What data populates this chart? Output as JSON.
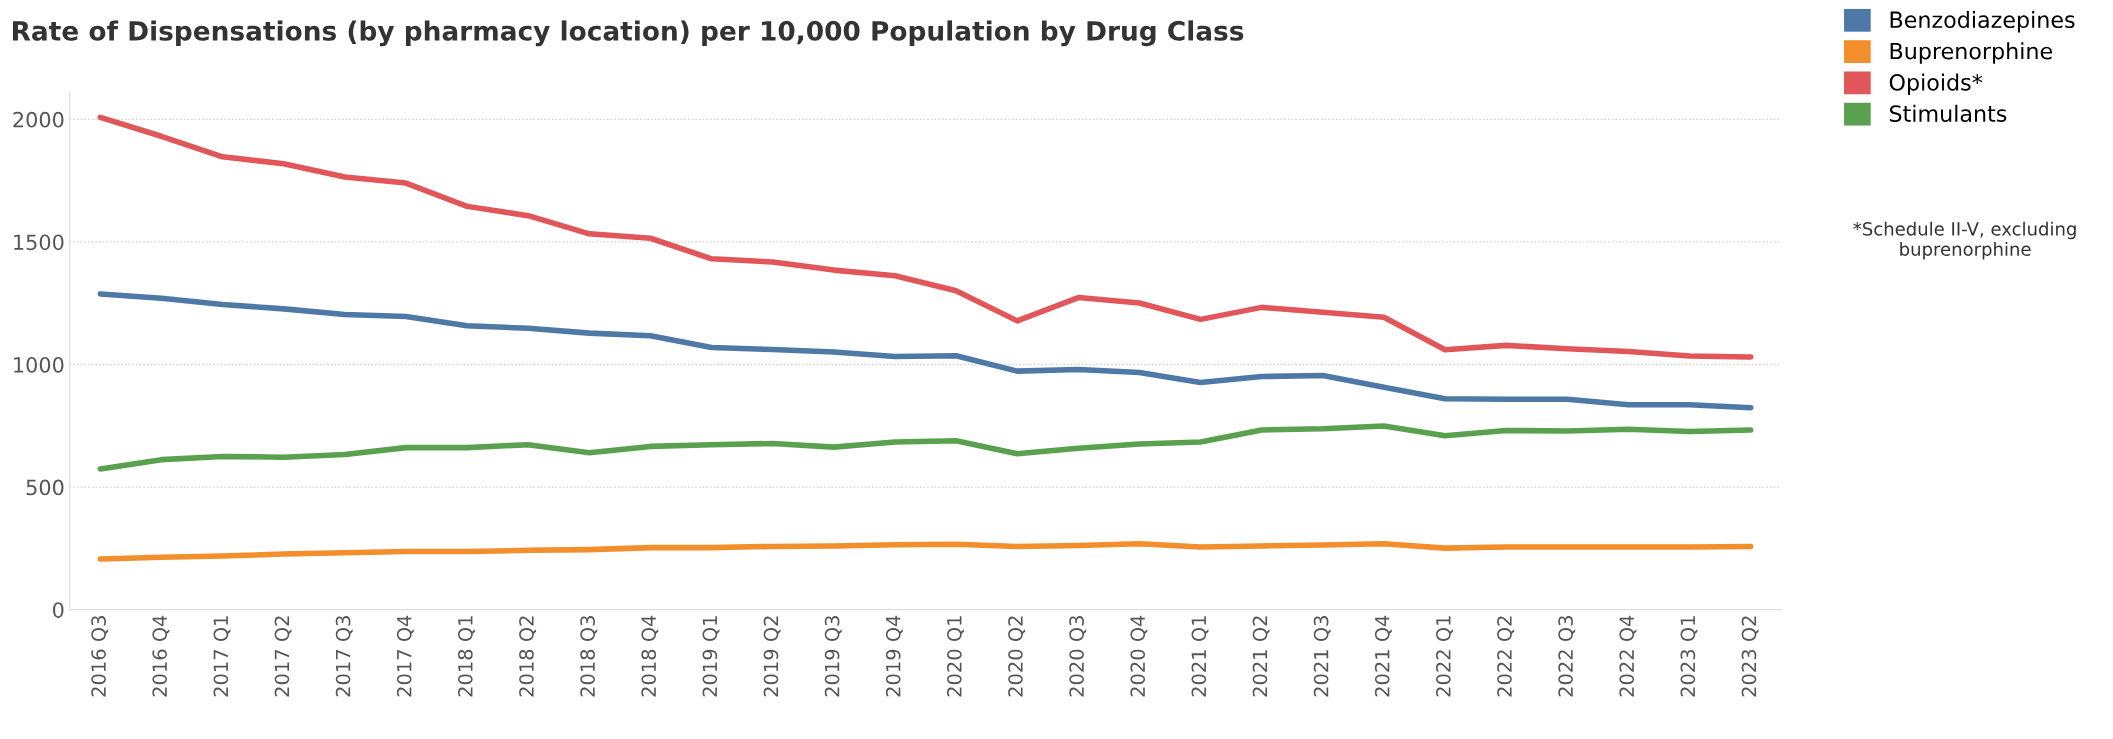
{
  "chart_data": {
    "type": "line",
    "title": "Rate of Dispensations (by pharmacy location) per 10,000 Population by Drug Class",
    "categories": [
      "2016 Q3",
      "2016 Q4",
      "2017 Q1",
      "2017 Q2",
      "2017 Q3",
      "2017 Q4",
      "2018 Q1",
      "2018 Q2",
      "2018 Q3",
      "2018 Q4",
      "2019 Q1",
      "2019 Q2",
      "2019 Q3",
      "2019 Q4",
      "2020 Q1",
      "2020 Q2",
      "2020 Q3",
      "2020 Q4",
      "2021 Q1",
      "2021 Q2",
      "2021 Q3",
      "2021 Q4",
      "2022 Q1",
      "2022 Q2",
      "2022 Q3",
      "2022 Q4",
      "2023 Q1",
      "2023 Q2"
    ],
    "series": [
      {
        "name": "Benzodiazepines",
        "color": "#4e79a7",
        "values": [
          1288,
          1270,
          1245,
          1227,
          1204,
          1196,
          1158,
          1148,
          1128,
          1117,
          1069,
          1061,
          1051,
          1033,
          1036,
          973,
          980,
          967,
          927,
          951,
          955,
          907,
          860,
          858,
          858,
          836,
          836,
          824
        ]
      },
      {
        "name": "Buprenorphine",
        "color": "#f28e2b",
        "values": [
          207,
          214,
          219,
          227,
          232,
          237,
          237,
          242,
          245,
          253,
          253,
          258,
          260,
          265,
          267,
          258,
          262,
          269,
          256,
          260,
          264,
          269,
          251,
          256,
          256,
          256,
          256,
          258
        ]
      },
      {
        "name": "Opioids*",
        "color": "#e15759",
        "values": [
          2008,
          1931,
          1847,
          1819,
          1765,
          1740,
          1645,
          1607,
          1533,
          1515,
          1431,
          1418,
          1385,
          1362,
          1301,
          1178,
          1273,
          1251,
          1184,
          1233,
          1213,
          1193,
          1060,
          1078,
          1064,
          1053,
          1035,
          1031
        ]
      },
      {
        "name": "Stimulants",
        "color": "#59a14f",
        "values": [
          574,
          612,
          625,
          622,
          633,
          661,
          661,
          673,
          640,
          666,
          673,
          678,
          663,
          684,
          689,
          636,
          658,
          676,
          684,
          733,
          738,
          749,
          709,
          731,
          729,
          736,
          727,
          733
        ]
      }
    ],
    "ylim": [
      0,
      2110
    ],
    "yticks": [
      0,
      500,
      1000,
      1500,
      2000
    ],
    "grid": "y",
    "legend": "top right",
    "line_style": "solid",
    "marker": "none",
    "annotations": [
      "*Schedule II-V, excluding\nbuprenorphine"
    ]
  }
}
